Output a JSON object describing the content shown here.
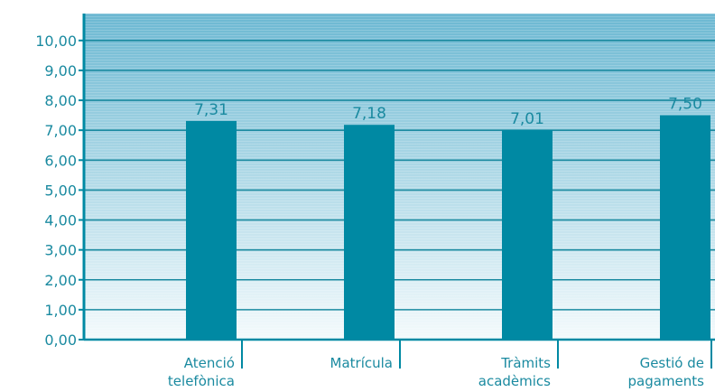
{
  "chart_data": {
    "type": "bar",
    "categories": [
      [
        "Atenció",
        "telefònica"
      ],
      [
        "Matrícula"
      ],
      [
        "Tràmits",
        "acadèmics"
      ],
      [
        "Gestió de",
        "pagaments"
      ]
    ],
    "values": [
      7.31,
      7.18,
      7.01,
      7.5
    ],
    "value_labels": [
      "7,31",
      "7,18",
      "7,01",
      "7,50"
    ],
    "yticks": [
      0,
      1,
      2,
      3,
      4,
      5,
      6,
      7,
      8,
      9,
      10
    ],
    "ytick_labels": [
      "0,00",
      "1,00",
      "2,00",
      "3,00",
      "4,00",
      "5,00",
      "6,00",
      "7,00",
      "8,00",
      "9,00",
      "10,00"
    ],
    "ylim": [
      0,
      10.9
    ],
    "grid": true,
    "colors": {
      "bar": "#0089a3",
      "axis": "#0089a3",
      "grid": "#1a8aa0",
      "text": "#1a8aa0",
      "background_top": "#6cb8d2",
      "background_bottom": "#f4fafc"
    }
  }
}
